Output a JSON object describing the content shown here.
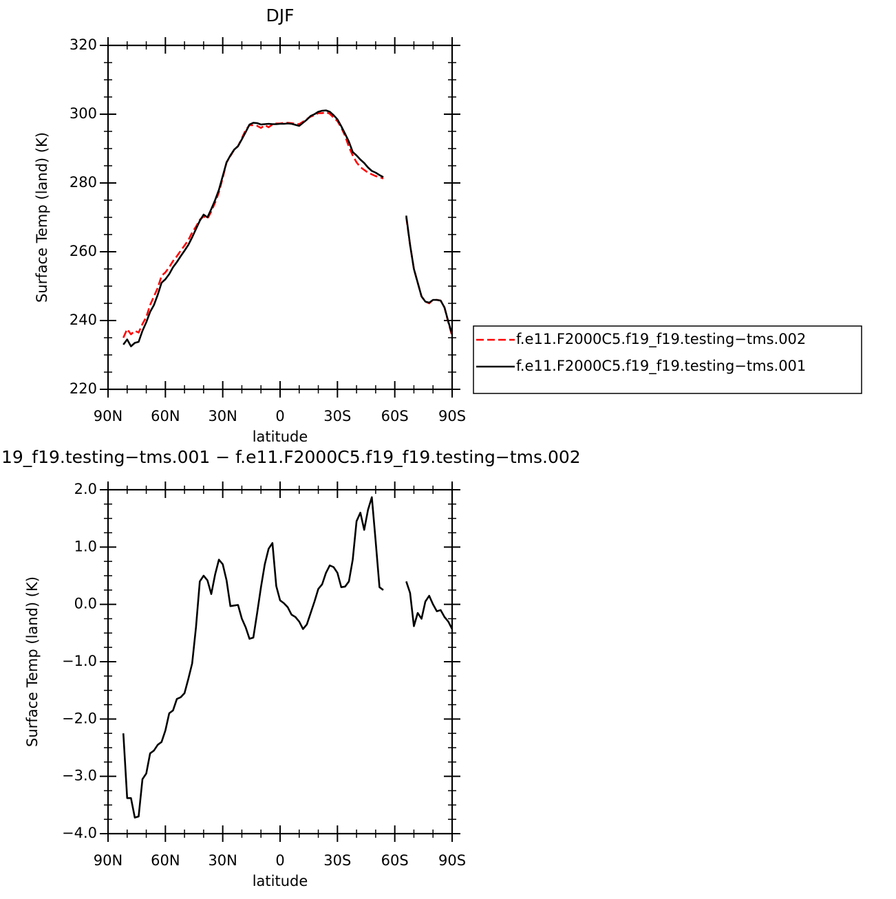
{
  "chart_data": [
    {
      "type": "line",
      "title": "DJF",
      "xlabel": "latitude",
      "ylabel": "Surface Temp (land) (K)",
      "xlim": [
        90,
        -90
      ],
      "xticks": [
        {
          "value": 90,
          "label": "90N"
        },
        {
          "value": 60,
          "label": "60N"
        },
        {
          "value": 30,
          "label": "30N"
        },
        0,
        {
          "value": -30,
          "label": "30S"
        },
        {
          "value": -60,
          "label": "60S"
        },
        {
          "value": -90,
          "label": "90S"
        }
      ],
      "ylim": [
        220,
        320
      ],
      "yticks": [
        220,
        240,
        260,
        280,
        300,
        320
      ],
      "legend": "right",
      "x": [
        82,
        80,
        78,
        76,
        74,
        72,
        70,
        68,
        66,
        64,
        62,
        60,
        58,
        56,
        54,
        52,
        50,
        48,
        46,
        44,
        42,
        40,
        38,
        36,
        34,
        32,
        30,
        28,
        26,
        24,
        22,
        20,
        18,
        16,
        14,
        12,
        10,
        8,
        6,
        4,
        2,
        0,
        -2,
        -4,
        -6,
        -8,
        -10,
        -12,
        -14,
        -16,
        -18,
        -20,
        -22,
        -24,
        -26,
        -28,
        -30,
        -32,
        -34,
        -36,
        -38,
        -40,
        -42,
        -44,
        -46,
        -48,
        -50,
        -52,
        -54,
        -60,
        -66,
        -68,
        -70,
        -72,
        -74,
        -76,
        -78,
        -80,
        -82,
        -84,
        -86,
        -88,
        -90
      ],
      "series": [
        {
          "name": "f.e11.F2000C5.f19_f19.testing−tms.002",
          "color": "#ff0000",
          "dashed": true,
          "values": [
            235,
            237.5,
            236,
            237,
            236.5,
            239,
            241,
            244.5,
            247,
            249.5,
            253,
            254,
            255.5,
            257.3,
            258.7,
            260.3,
            261.8,
            263.4,
            265.6,
            267.3,
            269.3,
            270.3,
            269.6,
            271.7,
            274.3,
            277.3,
            281.5,
            286,
            287.8,
            289.7,
            290.7,
            293,
            295.4,
            296.8,
            296.8,
            296.6,
            296,
            296.8,
            296.2,
            297,
            297.3,
            297.3,
            297.5,
            297.5,
            297.4,
            297.2,
            297.1,
            297.8,
            298.6,
            299.3,
            299.7,
            300.3,
            300.3,
            300.6,
            300.1,
            299,
            298,
            296.1,
            293.7,
            290.5,
            288,
            286,
            284.6,
            283.8,
            283,
            282.5,
            282,
            281.7,
            281.3,
            null,
            270,
            262,
            255,
            251,
            247,
            245.5,
            245,
            246,
            246,
            245.8,
            243.8,
            239.5,
            235.5
          ]
        },
        {
          "name": "f.e11.F2000C5.f19_f19.testing−tms.001",
          "color": "#000000",
          "dashed": false,
          "values": [
            233,
            234.5,
            232.5,
            233.5,
            233.8,
            237,
            239.5,
            242.5,
            244.5,
            247.5,
            251,
            252,
            253.5,
            255.5,
            257,
            258.7,
            260.3,
            262,
            264.2,
            266.6,
            269,
            270.8,
            270,
            272.4,
            275,
            278,
            282,
            286,
            288,
            289.7,
            290.7,
            292.7,
            294.8,
            297,
            297.5,
            297.4,
            297,
            297.1,
            297.2,
            297.1,
            297.1,
            297.2,
            297.2,
            297.3,
            297.2,
            296.9,
            296.6,
            297.5,
            298.4,
            299.5,
            300,
            300.7,
            301,
            301.1,
            300.7,
            299.7,
            298.5,
            296.5,
            294.3,
            292,
            289,
            288,
            286.8,
            285.8,
            284.5,
            283.5,
            283,
            282.3,
            281.7,
            null,
            270.5,
            262,
            255,
            251,
            247,
            245.5,
            245.2,
            246,
            246,
            245.8,
            243.8,
            239.7,
            236
          ]
        }
      ]
    },
    {
      "type": "line",
      "title": "19_f19.testing−tms.001 − f.e11.F2000C5.f19_f19.testing−tms.002",
      "xlabel": "latitude",
      "ylabel": "Surface Temp (land) (K)",
      "xlim": [
        90,
        -90
      ],
      "xticks": [
        {
          "value": 90,
          "label": "90N"
        },
        {
          "value": 60,
          "label": "60N"
        },
        {
          "value": 30,
          "label": "30N"
        },
        0,
        {
          "value": -30,
          "label": "30S"
        },
        {
          "value": -60,
          "label": "60S"
        },
        {
          "value": -90,
          "label": "90S"
        }
      ],
      "ylim": [
        -4,
        2
      ],
      "yticks": [
        {
          "value": -4,
          "label": "−4.0"
        },
        {
          "value": -3,
          "label": "−3.0"
        },
        {
          "value": -2,
          "label": "−2.0"
        },
        {
          "value": -1,
          "label": "−1.0"
        },
        {
          "value": 0,
          "label": "0.0"
        },
        {
          "value": 1,
          "label": "1.0"
        },
        {
          "value": 2,
          "label": "2.0"
        }
      ],
      "x": [
        82,
        80,
        78,
        76,
        74,
        72,
        70,
        68,
        66,
        64,
        62,
        60,
        58,
        56,
        54,
        52,
        50,
        48,
        46,
        44,
        42,
        40,
        38,
        36,
        34,
        32,
        30,
        28,
        26,
        24,
        22,
        20,
        18,
        16,
        14,
        12,
        10,
        8,
        6,
        4,
        2,
        0,
        -2,
        -4,
        -6,
        -8,
        -10,
        -12,
        -14,
        -16,
        -18,
        -20,
        -22,
        -24,
        -26,
        -28,
        -30,
        -32,
        -34,
        -36,
        -38,
        -40,
        -42,
        -44,
        -46,
        -48,
        -50,
        -52,
        -54,
        -60,
        -66,
        -68,
        -70,
        -72,
        -74,
        -76,
        -78,
        -80,
        -82,
        -84,
        -86,
        -88,
        -90
      ],
      "series": [
        {
          "color": "#000000",
          "dashed": false,
          "values": [
            -2.25,
            -3.38,
            -3.38,
            -3.72,
            -3.7,
            -3.05,
            -2.95,
            -2.6,
            -2.55,
            -2.45,
            -2.4,
            -2.2,
            -1.9,
            -1.85,
            -1.65,
            -1.62,
            -1.55,
            -1.3,
            -1.03,
            -0.4,
            0.4,
            0.5,
            0.42,
            0.18,
            0.52,
            0.78,
            0.7,
            0.42,
            -0.03,
            -0.02,
            -0.01,
            -0.25,
            -0.4,
            -0.6,
            -0.58,
            -0.15,
            0.3,
            0.7,
            0.97,
            1.07,
            0.32,
            0.07,
            0.02,
            -0.05,
            -0.18,
            -0.22,
            -0.3,
            -0.43,
            -0.35,
            -0.15,
            0.05,
            0.27,
            0.35,
            0.55,
            0.68,
            0.65,
            0.55,
            0.3,
            0.31,
            0.4,
            0.78,
            1.45,
            1.6,
            1.3,
            1.65,
            1.87,
            1.1,
            0.3,
            0.25,
            null,
            0.4,
            0.2,
            -0.38,
            -0.15,
            -0.25,
            0.05,
            0.15,
            0,
            -0.12,
            -0.1,
            -0.22,
            -0.3,
            -0.43
          ]
        }
      ]
    }
  ]
}
